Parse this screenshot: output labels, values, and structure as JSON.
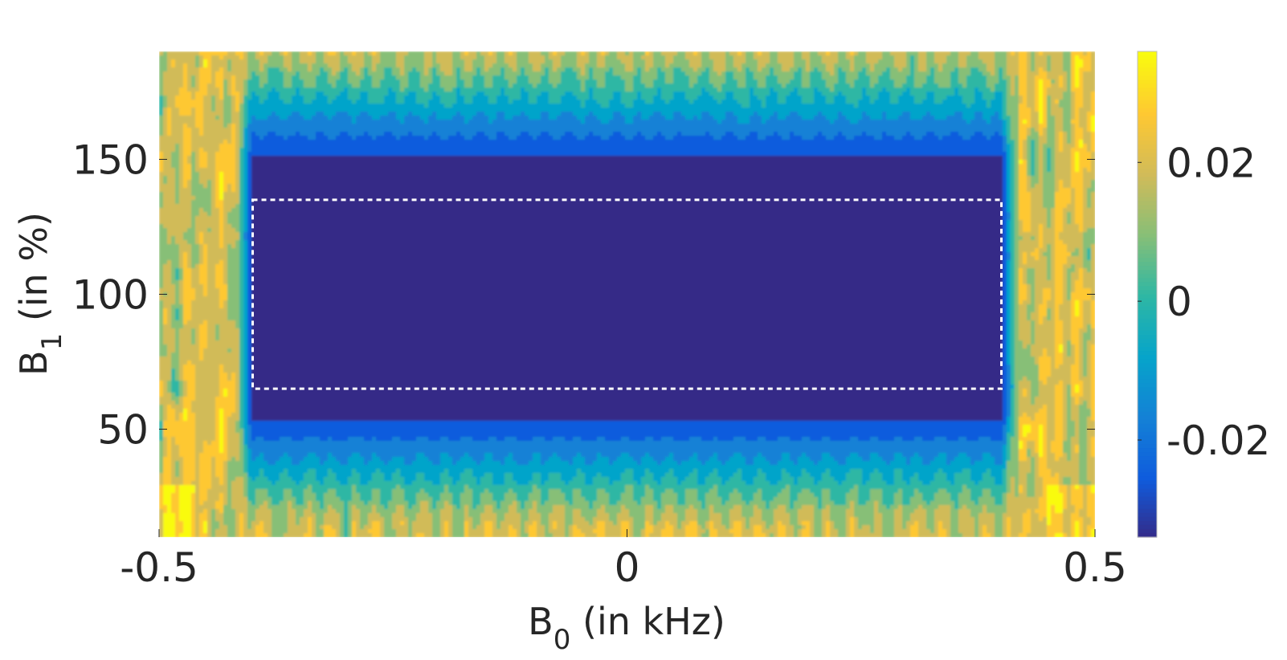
{
  "chart_data": {
    "type": "heatmap",
    "title": "",
    "xlabel": {
      "main": "B",
      "sub": "0",
      "rest": " (in kHz)"
    },
    "ylabel": {
      "main": "B",
      "sub": "1",
      "rest": " (in %)"
    },
    "xlim": [
      -0.5,
      0.5
    ],
    "ylim": [
      10,
      190
    ],
    "x_ticks": [
      {
        "value": -0.5,
        "label": "-0.5"
      },
      {
        "value": 0,
        "label": "0"
      },
      {
        "value": 0.5,
        "label": "0.5"
      }
    ],
    "y_ticks": [
      {
        "value": 50,
        "label": "50"
      },
      {
        "value": 100,
        "label": "100"
      },
      {
        "value": 150,
        "label": "150"
      }
    ],
    "colorbar": {
      "range": [
        -0.034,
        0.036
      ],
      "colormap": "parula",
      "ticks": [
        {
          "value": -0.02,
          "label": "-0.02"
        },
        {
          "value": 0,
          "label": "0"
        },
        {
          "value": 0.02,
          "label": "0.02"
        }
      ]
    },
    "contour_levels": [
      -0.032,
      -0.024,
      -0.016,
      -0.008,
      0,
      0.008,
      0.016,
      0.024,
      0.032
    ],
    "target_region": {
      "x": [
        -0.4,
        0.4
      ],
      "y": [
        65,
        135
      ],
      "style": "white dashed rectangle"
    },
    "description_values": {
      "inside_value": -0.034,
      "outside_range": [
        -0.01,
        0.036
      ]
    },
    "grid": false,
    "legend": "none"
  },
  "colors": {
    "parula": [
      "#352a87",
      "#0f5cdd",
      "#1481d6",
      "#06a4ca",
      "#2eb7a4",
      "#87bf77",
      "#d1bb59",
      "#fec832",
      "#f9fb0e"
    ],
    "text": "#262626",
    "region_border": "#ffffff"
  }
}
